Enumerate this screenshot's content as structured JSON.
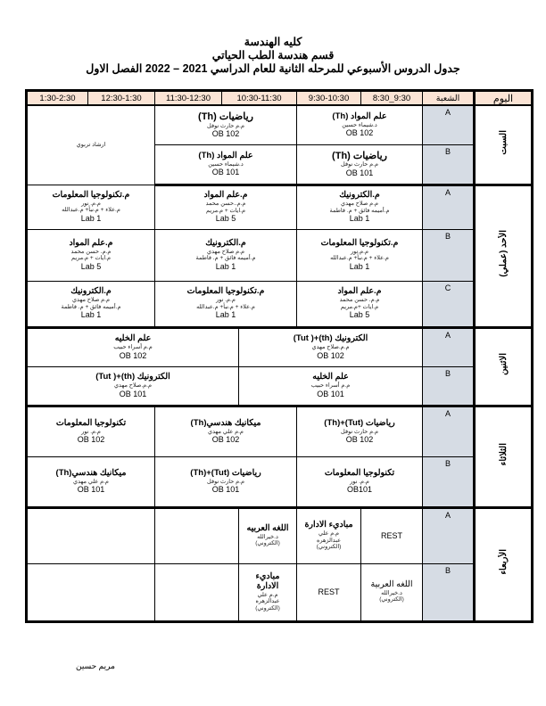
{
  "header": {
    "line1": "كليه الهندسة",
    "line2": "قسم هندسة الطب الحياتي",
    "line3": "جدول الدروس الأسبوعي للمرحله الثانية للعام الدراسي 2021 – 2022 الفصل الاول"
  },
  "columns": {
    "day": "اليوم",
    "section": "الشعبة",
    "times": [
      "1:30-2:30",
      "12:30-1:30",
      "11:30-12:30",
      "10:30-11:30",
      "9:30-10:30",
      "8:30_9:30"
    ]
  },
  "colors": {
    "header_bg": "#fbe4d5",
    "section_bg": "#d6dce4"
  },
  "days": [
    {
      "name": "السبت",
      "rows": [
        {
          "section": "A",
          "cells": [
            {
              "span": 2,
              "rowspan": 2,
              "lines": [
                {
                  "t": "ارشاد تربوي",
                  "k": "small"
                }
              ]
            },
            {
              "span": 3,
              "lines": [
                {
                  "t": "رياضيات (Th)",
                  "k": "subj big"
                },
                {
                  "t": "م.م حارث نوفل",
                  "k": "small"
                },
                {
                  "t": "OB 102",
                  "k": "room"
                }
              ]
            },
            {
              "span": 2,
              "lines": [
                {
                  "t": "علم المواد (Th)",
                  "k": "subj"
                },
                {
                  "t": "د.شيماء حسين",
                  "k": "small"
                },
                {
                  "t": "OB 102",
                  "k": "room"
                }
              ]
            }
          ]
        },
        {
          "section": "B",
          "cells": [
            {
              "span": 3,
              "lines": [
                {
                  "t": "علم المواد (Th)",
                  "k": "subj"
                },
                {
                  "t": "د.شيماء حسين",
                  "k": "small"
                },
                {
                  "t": "OB 101",
                  "k": "room"
                }
              ]
            },
            {
              "span": 2,
              "lines": [
                {
                  "t": "رياضيات (Th)",
                  "k": "subj big"
                },
                {
                  "t": "م.م حارث نوفل",
                  "k": "small"
                },
                {
                  "t": "OB 101",
                  "k": "room"
                }
              ]
            }
          ]
        }
      ]
    },
    {
      "name": "الأحد (عملي)",
      "rows": [
        {
          "section": "A",
          "cells": [
            {
              "span": 2,
              "lines": [
                {
                  "t": "م.تكنولوجيا المعلومات",
                  "k": "subj"
                },
                {
                  "t": "م.م. نور",
                  "k": "small"
                },
                {
                  "t": "م.علاء + م.نبأ+ م.عبدالله",
                  "k": "small"
                },
                {
                  "t": "Lab 1",
                  "k": "room"
                }
              ]
            },
            {
              "span": 3,
              "lines": [
                {
                  "t": "م.علم المواد",
                  "k": "subj"
                },
                {
                  "t": "م.م..حسن محمد",
                  "k": "small"
                },
                {
                  "t": "م.ايات + م.مريم",
                  "k": "small"
                },
                {
                  "t": "Lab 5",
                  "k": "room"
                }
              ]
            },
            {
              "span": 2,
              "lines": [
                {
                  "t": "م.الكترونيك",
                  "k": "subj"
                },
                {
                  "t": "م.م صلاح مهدي",
                  "k": "small"
                },
                {
                  "t": "م.أميمه فائق + م. فاطمة",
                  "k": "small"
                },
                {
                  "t": "Lab 1",
                  "k": "room"
                }
              ]
            }
          ]
        },
        {
          "section": "B",
          "cells": [
            {
              "span": 2,
              "lines": [
                {
                  "t": "م.علم المواد",
                  "k": "subj"
                },
                {
                  "t": "م.م. حسن محمد",
                  "k": "small"
                },
                {
                  "t": "م.ايات + م.مريم",
                  "k": "small"
                },
                {
                  "t": "Lab 5",
                  "k": "room"
                }
              ]
            },
            {
              "span": 3,
              "lines": [
                {
                  "t": "م.الكترونيك",
                  "k": "subj"
                },
                {
                  "t": "م.م صلاح مهدي",
                  "k": "small"
                },
                {
                  "t": "م.أميمه فائق + م. فاطمة",
                  "k": "small"
                },
                {
                  "t": "Lab 1",
                  "k": "room"
                }
              ]
            },
            {
              "span": 2,
              "lines": [
                {
                  "t": "م.تكنولوجيا المعلومات",
                  "k": "subj"
                },
                {
                  "t": "م.م.نور",
                  "k": "small"
                },
                {
                  "t": "م.علاء + م.نبأ+ م.عبدالله",
                  "k": "small"
                },
                {
                  "t": "Lab 1",
                  "k": "room"
                }
              ]
            }
          ]
        },
        {
          "section": "C",
          "cells": [
            {
              "span": 2,
              "lines": [
                {
                  "t": "م.الكترونيك",
                  "k": "subj"
                },
                {
                  "t": "م.م صلاح مهدي",
                  "k": "small"
                },
                {
                  "t": "م.أميمه فائق + م. فاطمة",
                  "k": "small"
                },
                {
                  "t": "Lab 1",
                  "k": "room"
                }
              ]
            },
            {
              "span": 3,
              "lines": [
                {
                  "t": "م.تكنولوجيا المعلومات",
                  "k": "subj"
                },
                {
                  "t": "م.م. نور",
                  "k": "small"
                },
                {
                  "t": "م.علاء + م.نبأ+ م.عبدالله",
                  "k": "small"
                },
                {
                  "t": "Lab 1",
                  "k": "room"
                }
              ]
            },
            {
              "span": 2,
              "lines": [
                {
                  "t": "م.علم المواد",
                  "k": "subj"
                },
                {
                  "t": "م.م. حسن محمد",
                  "k": "small"
                },
                {
                  "t": "م.ايات +م.مريم",
                  "k": "small"
                },
                {
                  "t": "Lab 5",
                  "k": "room"
                }
              ]
            }
          ]
        }
      ]
    },
    {
      "name": "الاثنين",
      "rows": [
        {
          "section": "A",
          "cells": [
            {
              "span": 4,
              "lines": [
                {
                  "t": "علم الخليه",
                  "k": "subj"
                },
                {
                  "t": "م.م أسراء حبيب",
                  "k": "small"
                },
                {
                  "t": "OB 102",
                  "k": "room"
                }
              ]
            },
            {
              "span": 3,
              "lines": [
                {
                  "t": "الكترونيك (th)+( Tut)",
                  "k": "subj"
                },
                {
                  "t": "م.م.صلاح مهدي",
                  "k": "small"
                },
                {
                  "t": "OB 102",
                  "k": "room"
                }
              ]
            }
          ]
        },
        {
          "section": "B",
          "cells": [
            {
              "span": 4,
              "lines": [
                {
                  "t": "الكترونيك (th)+( Tut)",
                  "k": "subj"
                },
                {
                  "t": "م.م.صلاح مهدي",
                  "k": "small"
                },
                {
                  "t": "OB 101",
                  "k": "room"
                }
              ]
            },
            {
              "span": 3,
              "lines": [
                {
                  "t": "علم الخليه",
                  "k": "subj"
                },
                {
                  "t": "م.م أسراء حبيب",
                  "k": "small"
                },
                {
                  "t": "OB 101",
                  "k": "room"
                }
              ]
            }
          ]
        }
      ]
    },
    {
      "name": "الثلاثاء",
      "rows": [
        {
          "section": "A",
          "cells": [
            {
              "span": 2,
              "lines": [
                {
                  "t": "تكنولوجيا المعلومات",
                  "k": "subj"
                },
                {
                  "t": "م.م. نور",
                  "k": "small"
                },
                {
                  "t": "OB 102",
                  "k": "room"
                }
              ]
            },
            {
              "span": 3,
              "lines": [
                {
                  "t": "ميكانيك هندسي(Th)",
                  "k": "subj"
                },
                {
                  "t": "م.م علي مهدي",
                  "k": "small"
                },
                {
                  "t": "OB 102",
                  "k": "room"
                }
              ]
            },
            {
              "span": 2,
              "lines": [
                {
                  "t": "رياضيات  (Tut)+(Th)",
                  "k": "subj"
                },
                {
                  "t": "م.م حارث نوفل",
                  "k": "small"
                },
                {
                  "t": "OB 102",
                  "k": "room"
                }
              ]
            }
          ]
        },
        {
          "section": "B",
          "cells": [
            {
              "span": 2,
              "lines": [
                {
                  "t": "ميكانيك هندسي(Th)",
                  "k": "subj"
                },
                {
                  "t": "م.م علي مهدي",
                  "k": "small"
                },
                {
                  "t": "OB 101",
                  "k": "room"
                }
              ]
            },
            {
              "span": 3,
              "lines": [
                {
                  "t": "رياضيات  (Tut)+(Th)",
                  "k": "subj"
                },
                {
                  "t": "م.م حارث نوفل",
                  "k": "small"
                },
                {
                  "t": "OB 101",
                  "k": "room"
                }
              ]
            },
            {
              "span": 2,
              "lines": [
                {
                  "t": "تكنولوجيا المعلومات",
                  "k": "subj"
                },
                {
                  "t": "م.م. نور",
                  "k": "small"
                },
                {
                  "t": "OB101",
                  "k": "room"
                }
              ]
            }
          ]
        }
      ]
    },
    {
      "name": "الأربعاء",
      "rows": [
        {
          "section": "A",
          "cells": [
            {
              "span": 2,
              "lines": []
            },
            {
              "span": 2,
              "lines": []
            },
            {
              "span": 1,
              "lines": [
                {
                  "t": "اللغه العربيه",
                  "k": "subj"
                },
                {
                  "t": "د.خيرالله",
                  "k": "small"
                },
                {
                  "t": "(الكتروني)",
                  "k": "small"
                }
              ]
            },
            {
              "span": 1,
              "lines": [
                {
                  "t": "مباديء الادارة",
                  "k": "subj"
                },
                {
                  "t": "م.م علي",
                  "k": "small"
                },
                {
                  "t": "عبدالزهره",
                  "k": "small"
                },
                {
                  "t": "(الكتروني)",
                  "k": "small"
                }
              ]
            },
            {
              "span": 1,
              "lines": [
                {
                  "t": "REST",
                  "k": "rest"
                }
              ]
            }
          ]
        },
        {
          "section": "B",
          "cells": [
            {
              "span": 2,
              "lines": []
            },
            {
              "span": 2,
              "lines": []
            },
            {
              "span": 1,
              "lines": [
                {
                  "t": "مباديء",
                  "k": "subj"
                },
                {
                  "t": "الادارة",
                  "k": "subj"
                },
                {
                  "t": "م.م علي",
                  "k": "small"
                },
                {
                  "t": "عبدالزهره",
                  "k": "small"
                },
                {
                  "t": "(الكتروني)",
                  "k": "small"
                }
              ]
            },
            {
              "span": 1,
              "lines": [
                {
                  "t": "REST",
                  "k": "rest"
                }
              ]
            },
            {
              "span": 1,
              "lines": [
                {
                  "t": "اللغه العربية",
                  "k": "subj plain"
                },
                {
                  "t": "د.خيرالله",
                  "k": "small"
                },
                {
                  "t": "(الكتروني)",
                  "k": "small"
                }
              ]
            }
          ]
        }
      ]
    }
  ],
  "footer": {
    "author": "مريم حسين"
  }
}
